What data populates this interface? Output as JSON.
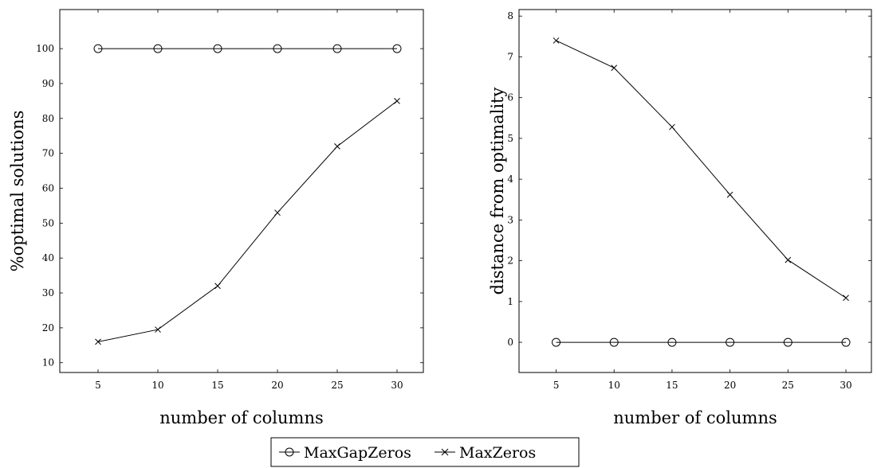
{
  "legend": {
    "placement": "bottom-center",
    "entries": [
      {
        "label": "MaxGapZeros",
        "marker": "circle"
      },
      {
        "label": "MaxZeros",
        "marker": "cross"
      }
    ]
  },
  "chart_data": [
    {
      "type": "line",
      "title": "",
      "xlabel": "number of columns",
      "ylabel": "%optimal solutions",
      "x": [
        5,
        10,
        15,
        20,
        25,
        30
      ],
      "xticks": [
        "5",
        "10",
        "15",
        "20",
        "25",
        "30"
      ],
      "yticks": [
        "10",
        "20",
        "30",
        "40",
        "50",
        "60",
        "70",
        "80",
        "90",
        "100"
      ],
      "xlim": [
        1.8,
        32.2
      ],
      "ylim": [
        7.2,
        111.2
      ],
      "grid": false,
      "series": [
        {
          "name": "MaxGapZeros",
          "marker": "circle",
          "values": [
            100,
            100,
            100,
            100,
            100,
            100
          ]
        },
        {
          "name": "MaxZeros",
          "marker": "cross",
          "values": [
            16,
            19.5,
            32,
            53,
            72,
            85
          ]
        }
      ]
    },
    {
      "type": "line",
      "title": "",
      "xlabel": "number of columns",
      "ylabel": "distance from optimality",
      "x": [
        5,
        10,
        15,
        20,
        25,
        30
      ],
      "xticks": [
        "5",
        "10",
        "15",
        "20",
        "25",
        "30"
      ],
      "yticks": [
        "0",
        "1",
        "2",
        "3",
        "4",
        "5",
        "6",
        "7",
        "8"
      ],
      "xlim": [
        1.8,
        32.2
      ],
      "ylim": [
        -0.74,
        8.16
      ],
      "grid": false,
      "series": [
        {
          "name": "MaxGapZeros",
          "marker": "circle",
          "values": [
            0,
            0,
            0,
            0,
            0,
            0
          ]
        },
        {
          "name": "MaxZeros",
          "marker": "cross",
          "values": [
            7.4,
            6.73,
            5.28,
            3.62,
            2.02,
            1.09
          ]
        }
      ]
    }
  ]
}
